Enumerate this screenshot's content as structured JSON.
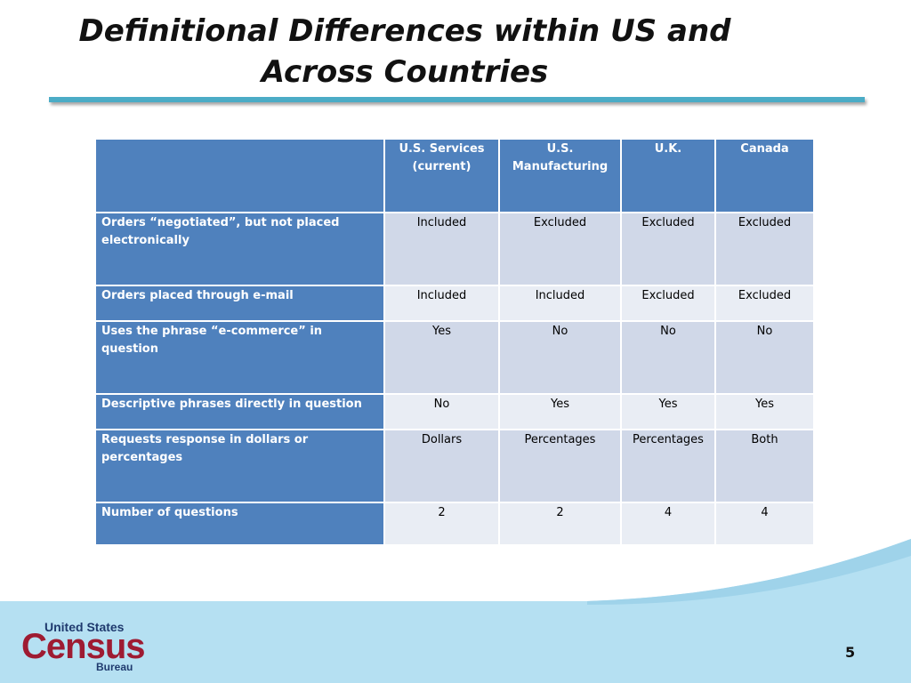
{
  "title_lines": [
    "Definitional Differences within US and",
    "Across Countries"
  ],
  "table": {
    "columns": [
      "U.S. Services (current)",
      "U.S. Manufacturing",
      "U.K.",
      "Canada"
    ],
    "rows": [
      {
        "label": "Orders “negotiated”, but not placed electronically",
        "cells": [
          "Included",
          "Excluded",
          "Excluded",
          "Excluded"
        ]
      },
      {
        "label": "Orders placed through e-mail",
        "cells": [
          "Included",
          "Included",
          "Excluded",
          "Excluded"
        ]
      },
      {
        "label": "Uses the phrase “e-commerce” in question",
        "cells": [
          "Yes",
          "No",
          "No",
          "No"
        ]
      },
      {
        "label": "Descriptive phrases directly in question",
        "cells": [
          "No",
          "Yes",
          "Yes",
          "Yes"
        ]
      },
      {
        "label": "Requests response in dollars or percentages",
        "cells": [
          "Dollars",
          "Percentages",
          "Percentages",
          "Both"
        ]
      },
      {
        "label": "Number of questions",
        "cells": [
          2,
          2,
          4,
          4
        ]
      }
    ]
  },
  "logo": {
    "line1": "United States",
    "line2": "Census",
    "line3": "Bureau"
  },
  "page_number": 5
}
